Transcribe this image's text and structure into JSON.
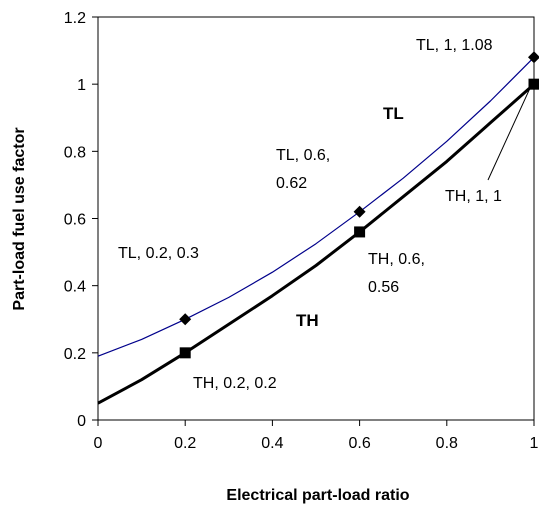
{
  "chart_data": {
    "type": "line",
    "title": "",
    "xlabel": "Electrical part-load ratio",
    "ylabel": "Part-load fuel use factor",
    "xlim": [
      0,
      1
    ],
    "ylim": [
      0,
      1.2
    ],
    "x_ticks": [
      "0",
      "0.2",
      "0.4",
      "0.6",
      "0.8",
      "1"
    ],
    "y_ticks": [
      "0",
      "0.2",
      "0.4",
      "0.6",
      "0.8",
      "1",
      "1.2"
    ],
    "grid": false,
    "series": [
      {
        "name": "TL",
        "color": "#00008b",
        "marker": "diamond",
        "curve": {
          "x": [
            0,
            0.1,
            0.2,
            0.3,
            0.4,
            0.5,
            0.6,
            0.7,
            0.8,
            0.9,
            1.0
          ],
          "y": [
            0.19,
            0.24,
            0.3,
            0.365,
            0.44,
            0.525,
            0.62,
            0.72,
            0.83,
            0.95,
            1.08
          ]
        },
        "markers": {
          "x": [
            0.2,
            0.6,
            1.0
          ],
          "y": [
            0.3,
            0.62,
            1.08
          ]
        }
      },
      {
        "name": "TH",
        "color": "#000000",
        "marker": "square",
        "curve": {
          "x": [
            0,
            0.1,
            0.2,
            0.3,
            0.4,
            0.5,
            0.6,
            0.7,
            0.8,
            0.9,
            1.0
          ],
          "y": [
            0.05,
            0.12,
            0.2,
            0.285,
            0.37,
            0.46,
            0.56,
            0.665,
            0.77,
            0.885,
            1.0
          ]
        },
        "markers": {
          "x": [
            0.2,
            0.6,
            1.0
          ],
          "y": [
            0.2,
            0.56,
            1.0
          ]
        }
      }
    ],
    "annotations": [
      {
        "lines": [
          "TL, 1, 1.08"
        ]
      },
      {
        "lines": [
          "TL, 0.6,",
          "0.62"
        ]
      },
      {
        "lines": [
          "TL, 0.2, 0.3"
        ]
      },
      {
        "lines": [
          "TH, 1, 1"
        ]
      },
      {
        "lines": [
          "TH, 0.6,",
          "0.56"
        ]
      },
      {
        "lines": [
          "TH, 0.2, 0.2"
        ]
      }
    ],
    "region_labels": [
      "TL",
      "TH"
    ]
  }
}
